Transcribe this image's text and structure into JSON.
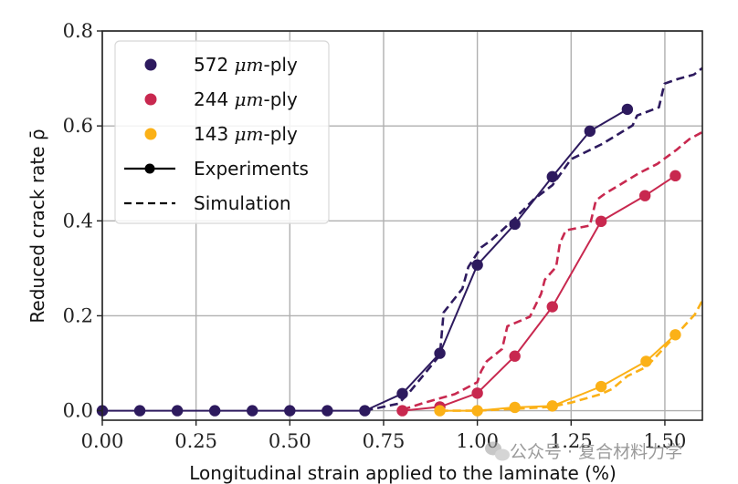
{
  "chart_data": {
    "type": "line",
    "title": "",
    "xlabel": "Longitudinal strain applied to the laminate (%)",
    "ylabel": "Reduced crack rate ρ̄",
    "xlim": [
      0.0,
      1.6
    ],
    "ylim": [
      -0.02,
      0.8
    ],
    "xticks": [
      0.0,
      0.25,
      0.5,
      0.75,
      1.0,
      1.25,
      1.5
    ],
    "xtick_labels": [
      "0.00",
      "0.25",
      "0.50",
      "0.75",
      "1.00",
      "1.25",
      "1.50"
    ],
    "yticks": [
      0.0,
      0.2,
      0.4,
      0.6,
      0.8
    ],
    "ytick_labels": [
      "0.0",
      "0.2",
      "0.4",
      "0.6",
      "0.8"
    ],
    "grid": true,
    "legend_position": "top-left",
    "legend": [
      {
        "label_num": "572",
        "label_unit": "μm",
        "label_suffix": "-ply",
        "marker": "dot",
        "color": "#2d1a5e"
      },
      {
        "label_num": "244",
        "label_unit": "μm",
        "label_suffix": "-ply",
        "marker": "dot",
        "color": "#c8284f"
      },
      {
        "label_num": "143",
        "label_unit": "μm",
        "label_suffix": "-ply",
        "marker": "dot",
        "color": "#fbb117"
      },
      {
        "label": "Experiments",
        "style": "solid-with-marker",
        "color": "#000000"
      },
      {
        "label": "Simulation",
        "style": "dashed",
        "color": "#000000"
      }
    ],
    "series": [
      {
        "name": "572 μm-ply Experiments",
        "color": "#2d1a5e",
        "style": "solid",
        "markers": true,
        "x": [
          0.0,
          0.1,
          0.2,
          0.3,
          0.4,
          0.5,
          0.6,
          0.7,
          0.8,
          0.9,
          1.0,
          1.1,
          1.2,
          1.3,
          1.4
        ],
        "y": [
          0.0,
          0.0,
          0.0,
          0.0,
          0.0,
          0.0,
          0.0,
          0.0,
          0.036,
          0.121,
          0.307,
          0.393,
          0.493,
          0.589,
          0.635
        ]
      },
      {
        "name": "572 μm-ply Simulation",
        "color": "#2d1a5e",
        "style": "dashed",
        "markers": false,
        "x": [
          0.7,
          0.79,
          0.82,
          0.9,
          0.91,
          0.96,
          0.976,
          1.01,
          1.04,
          1.1,
          1.15,
          1.2,
          1.25,
          1.333,
          1.414,
          1.426,
          1.484,
          1.499,
          1.535,
          1.577,
          1.6
        ],
        "y": [
          0.0,
          0.015,
          0.04,
          0.117,
          0.207,
          0.257,
          0.303,
          0.344,
          0.361,
          0.405,
          0.445,
          0.475,
          0.53,
          0.562,
          0.601,
          0.622,
          0.639,
          0.689,
          0.699,
          0.708,
          0.722
        ]
      },
      {
        "name": "244 μm-ply Experiments",
        "color": "#c8284f",
        "style": "solid",
        "markers": true,
        "x": [
          0.8,
          0.9,
          1.0,
          1.1,
          1.2,
          1.33,
          1.447,
          1.528
        ],
        "y": [
          0.0,
          0.008,
          0.037,
          0.115,
          0.219,
          0.399,
          0.453,
          0.495
        ]
      },
      {
        "name": "244 μm-ply Simulation",
        "color": "#c8284f",
        "style": "dashed",
        "markers": false,
        "x": [
          0.8,
          0.86,
          0.94,
          1.0,
          1.01,
          1.025,
          1.066,
          1.08,
          1.14,
          1.17,
          1.18,
          1.21,
          1.22,
          1.236,
          1.3,
          1.316,
          1.34,
          1.38,
          1.43,
          1.48,
          1.53,
          1.565,
          1.6
        ],
        "y": [
          0.002,
          0.017,
          0.035,
          0.06,
          0.083,
          0.104,
          0.13,
          0.178,
          0.198,
          0.246,
          0.276,
          0.303,
          0.353,
          0.38,
          0.39,
          0.443,
          0.457,
          0.476,
          0.5,
          0.52,
          0.549,
          0.572,
          0.587
        ]
      },
      {
        "name": "143 μm-ply Experiments",
        "color": "#fbb117",
        "style": "solid",
        "markers": true,
        "x": [
          0.9,
          1.0,
          1.1,
          1.2,
          1.33,
          1.45,
          1.528
        ],
        "y": [
          0.0,
          0.0,
          0.007,
          0.01,
          0.051,
          0.104,
          0.16
        ]
      },
      {
        "name": "143 μm-ply Simulation",
        "color": "#fbb117",
        "style": "dashed",
        "markers": false,
        "x": [
          0.9,
          1.0,
          1.1,
          1.195,
          1.25,
          1.33,
          1.36,
          1.4,
          1.45,
          1.48,
          1.53,
          1.58,
          1.6
        ],
        "y": [
          0.0,
          0.0,
          0.004,
          0.008,
          0.017,
          0.035,
          0.046,
          0.073,
          0.092,
          0.117,
          0.16,
          0.203,
          0.232
        ]
      }
    ]
  },
  "watermark": {
    "icon": "wechat-icon",
    "text": "公众号 · 复合材料力学"
  }
}
